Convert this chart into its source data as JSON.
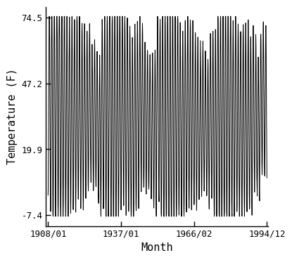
{
  "title": "",
  "xlabel": "Month",
  "ylabel": "Temperature (F)",
  "start_year": 1908,
  "start_month": 1,
  "end_year": 1994,
  "end_month": 12,
  "yticks": [
    -7.4,
    19.9,
    47.2,
    74.5
  ],
  "xtick_labels": [
    "1908/01",
    "1937/01",
    "1966/02",
    "1994/12"
  ],
  "xtick_positions_years": [
    1908.0,
    1937.0,
    1966.083,
    1994.917
  ],
  "line_color": "#000000",
  "background_color": "#ffffff",
  "linewidth": 0.7,
  "font_family": "monospace",
  "font_size_tick": 9,
  "font_size_label": 11
}
